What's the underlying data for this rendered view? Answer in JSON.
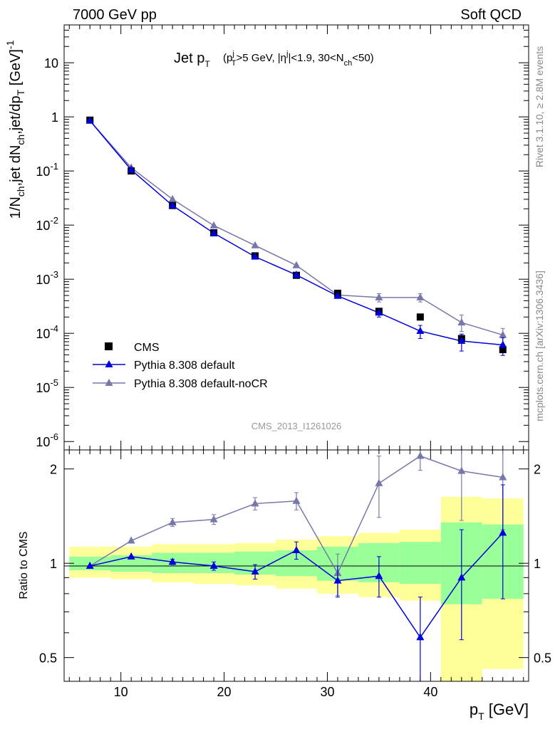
{
  "header": {
    "left": "7000 GeV pp",
    "right": "Soft QCD"
  },
  "title": {
    "main": "Jet p",
    "main_sub": "T",
    "cond1": "(p",
    "cond1_sup": "j",
    "cond1_sub": "T",
    "cond2": ">5 GeV, |",
    "cond2_eta": "η",
    "cond2_sup": "j",
    "cond3": "|<1.9, 30<N",
    "cond3_sub": "ch",
    "cond4": "<50)"
  },
  "side_notes": {
    "rivet": "Rivet 3.1.10, ≥ 2.8M events",
    "source": "mcplots.cern.ch [arXiv:1306.3436]"
  },
  "watermark": "CMS_2013_I1261026",
  "ylabel_top": "1/N_ch,jet dN_ch,jet/dp_T [GeV]^-1",
  "ylabel_bottom": "Ratio to CMS",
  "xlabel": "p_T [GeV]",
  "legend": {
    "data": "CMS",
    "mc1": "Pythia 8.308 default",
    "mc2": "Pythia 8.308 default-noCR"
  },
  "colors": {
    "data": "#000000",
    "mc1": "#0000dd",
    "mc2": "#7777aa",
    "band_inner": "#99ff99",
    "band_outer": "#ffff99"
  },
  "chart_data": [
    {
      "type": "scatter",
      "panel": "main",
      "xlabel": "p_T [GeV]",
      "ylabel": "1/N_ch,jet dN_ch,jet/dp_T [GeV]^-1",
      "xlim": [
        4.5,
        49.5
      ],
      "ylim": [
        7e-07,
        50
      ],
      "yscale": "log",
      "y_ticks": [
        "10^-6",
        "10^-5",
        "10^-4",
        "10^-3",
        "10^-2",
        "10^-1",
        "1",
        "10"
      ],
      "x_ticks": [
        10,
        20,
        30,
        40
      ],
      "x": [
        7,
        11,
        15,
        19,
        23,
        27,
        31,
        35,
        39,
        43,
        47
      ],
      "series": [
        {
          "name": "CMS",
          "style": "square",
          "values": [
            0.87,
            0.1,
            0.023,
            0.0072,
            0.0027,
            0.00118,
            0.00055,
            0.000255,
            0.0002,
            8e-05,
            5e-05
          ]
        },
        {
          "name": "Pythia 8.308 default",
          "style": "triangle-line",
          "values": [
            0.85,
            0.105,
            0.023,
            0.0071,
            0.0026,
            0.0012,
            0.00049,
            0.00024,
            0.00011,
            7.2e-05,
            6.1e-05
          ],
          "err_lo": [
            0,
            0,
            0,
            0,
            0,
            0,
            0,
            4e-05,
            3e-05,
            2.5e-05,
            2.2e-05
          ],
          "err_hi": [
            0,
            0,
            0,
            0,
            0,
            0,
            0,
            4e-05,
            3e-05,
            2.5e-05,
            2.2e-05
          ]
        },
        {
          "name": "Pythia 8.308 default-noCR",
          "style": "triangle-line",
          "values": [
            0.85,
            0.115,
            0.03,
            0.0098,
            0.0042,
            0.0018,
            0.00051,
            0.00046,
            0.00046,
            0.000158,
            9.3e-05
          ],
          "err_lo": [
            0,
            0,
            0,
            0,
            0,
            0,
            0,
            8e-05,
            8e-05,
            5e-05,
            3e-05
          ],
          "err_hi": [
            0,
            0,
            0,
            0,
            0,
            0,
            0,
            8e-05,
            8e-05,
            6e-05,
            3e-05
          ]
        }
      ]
    },
    {
      "type": "scatter",
      "panel": "ratio",
      "xlabel": "p_T [GeV]",
      "ylabel": "Ratio to CMS",
      "xlim": [
        4.5,
        49.5
      ],
      "ylim": [
        0.42,
        2.3
      ],
      "yscale": "log",
      "y_ticks": [
        0.5,
        1,
        2
      ],
      "x_ticks": [
        10,
        20,
        30,
        40
      ],
      "bins": [
        [
          5,
          9
        ],
        [
          9,
          13
        ],
        [
          13,
          17
        ],
        [
          17,
          21
        ],
        [
          21,
          25
        ],
        [
          25,
          29
        ],
        [
          29,
          33
        ],
        [
          33,
          37
        ],
        [
          37,
          41
        ],
        [
          41,
          45
        ],
        [
          45,
          49
        ]
      ],
      "band_inner": [
        [
          0.95,
          1.05
        ],
        [
          0.94,
          1.06
        ],
        [
          0.93,
          1.08
        ],
        [
          0.93,
          1.08
        ],
        [
          0.92,
          1.09
        ],
        [
          0.91,
          1.1
        ],
        [
          0.88,
          1.13
        ],
        [
          0.87,
          1.16
        ],
        [
          0.86,
          1.17
        ],
        [
          0.74,
          1.35
        ],
        [
          0.77,
          1.33
        ]
      ],
      "band_outer": [
        [
          0.9,
          1.13
        ],
        [
          0.89,
          1.13
        ],
        [
          0.87,
          1.15
        ],
        [
          0.86,
          1.15
        ],
        [
          0.85,
          1.16
        ],
        [
          0.83,
          1.19
        ],
        [
          0.8,
          1.22
        ],
        [
          0.78,
          1.25
        ],
        [
          0.76,
          1.28
        ],
        [
          0.4,
          1.63
        ],
        [
          0.46,
          1.61
        ]
      ],
      "x": [
        7,
        11,
        15,
        19,
        23,
        27,
        31,
        35,
        39,
        43,
        47
      ],
      "series": [
        {
          "name": "Pythia 8.308 default",
          "style": "triangle-line",
          "values": [
            0.98,
            1.05,
            1.01,
            0.98,
            0.94,
            1.1,
            0.88,
            0.91,
            0.58,
            0.9,
            1.25
          ],
          "err_lo": [
            0,
            0,
            0.02,
            0.03,
            0.05,
            0.07,
            0.1,
            0.13,
            0.2,
            0.33,
            0.48
          ],
          "err_hi": [
            0,
            0,
            0.02,
            0.03,
            0.05,
            0.07,
            0.1,
            0.14,
            0.2,
            0.38,
            0.53
          ]
        },
        {
          "name": "Pythia 8.308 default-noCR",
          "style": "triangle-line",
          "values": [
            0.98,
            1.18,
            1.35,
            1.38,
            1.55,
            1.58,
            0.93,
            1.8,
            2.2,
            1.97,
            1.88
          ],
          "err_lo": [
            0,
            0,
            0.04,
            0.05,
            0.07,
            0.1,
            0.14,
            0.4,
            0.22,
            0.6,
            0.6
          ],
          "err_hi": [
            0,
            0,
            0.04,
            0.05,
            0.07,
            0.1,
            0.14,
            0.4,
            0.22,
            0.4,
            0.45
          ]
        }
      ]
    }
  ]
}
